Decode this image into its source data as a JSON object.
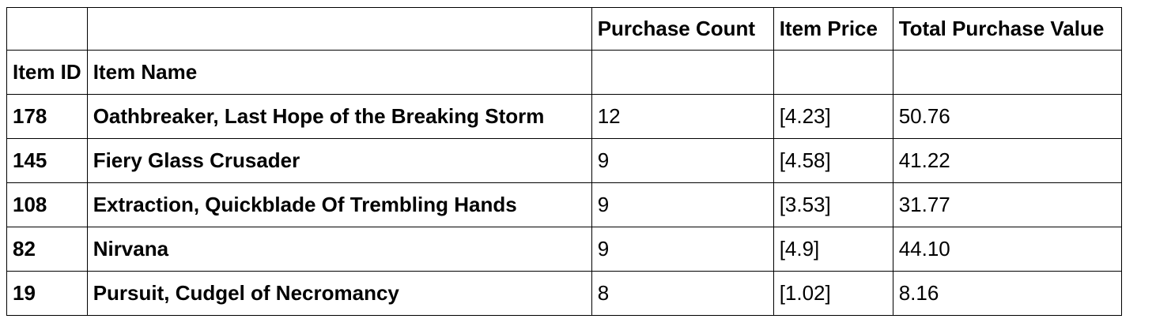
{
  "table": {
    "columns": [
      "Purchase Count",
      "Item Price",
      "Total Purchase Value"
    ],
    "index_names": [
      "Item ID",
      "Item Name"
    ],
    "rows": [
      {
        "item_id": "178",
        "item_name": "Oathbreaker, Last Hope of the Breaking Storm",
        "purchase_count": "12",
        "item_price": "[4.23]",
        "total_purchase_value": "50.76"
      },
      {
        "item_id": "145",
        "item_name": "Fiery Glass Crusader",
        "purchase_count": "9",
        "item_price": "[4.58]",
        "total_purchase_value": "41.22"
      },
      {
        "item_id": "108",
        "item_name": "Extraction, Quickblade Of Trembling Hands",
        "purchase_count": "9",
        "item_price": "[3.53]",
        "total_purchase_value": "31.77"
      },
      {
        "item_id": "82",
        "item_name": "Nirvana",
        "purchase_count": "9",
        "item_price": "[4.9]",
        "total_purchase_value": "44.10"
      },
      {
        "item_id": "19",
        "item_name": "Pursuit, Cudgel of Necromancy",
        "purchase_count": "8",
        "item_price": "[1.02]",
        "total_purchase_value": "8.16"
      }
    ]
  }
}
